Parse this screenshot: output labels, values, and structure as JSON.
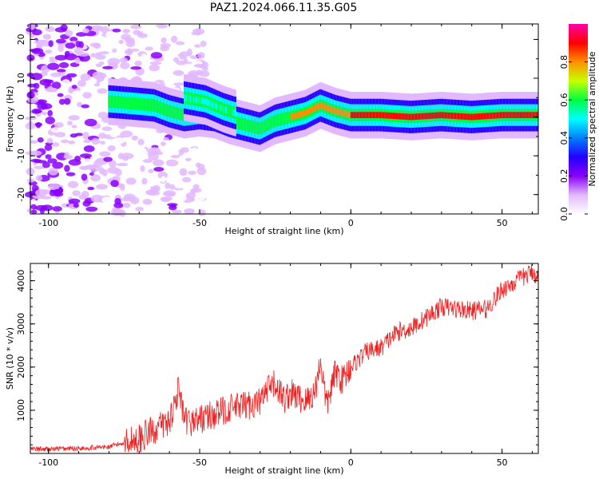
{
  "title": "PAZ1.2024.066.11.35.G05",
  "chart_data": [
    {
      "type": "heatmap",
      "xlabel": "Height of straight line (km)",
      "ylabel": "Frequency (Hz)",
      "xlim": [
        -106,
        62
      ],
      "ylim": [
        -25,
        24
      ],
      "xticks": [
        -100,
        -50,
        0,
        50
      ],
      "yticks": [
        -20,
        -10,
        0,
        10,
        20
      ],
      "colorbar": {
        "label": "Normalized spectral amplitude",
        "range": [
          0,
          1
        ],
        "ticks": [
          "0.0",
          "0.2",
          "0.4",
          "0.6",
          "0.8"
        ],
        "colors": [
          "#ffffff",
          "#e2b8ff",
          "#8a00ff",
          "#2200ff",
          "#0080ff",
          "#00ffff",
          "#00ff40",
          "#c8ff00",
          "#ff9000",
          "#ff0000",
          "#ff00aa"
        ]
      },
      "ridge": [
        {
          "x": -80,
          "y": 4
        },
        {
          "x": -72,
          "y": 3.5
        },
        {
          "x": -65,
          "y": 3
        },
        {
          "x": -60,
          "y": 1.5
        },
        {
          "x": -55,
          "y": 0.5
        },
        {
          "x": -50,
          "y": 1
        },
        {
          "x": -45,
          "y": 0.5
        },
        {
          "x": -40,
          "y": -1
        },
        {
          "x": -35,
          "y": -2
        },
        {
          "x": -30,
          "y": -3
        },
        {
          "x": -25,
          "y": -1
        },
        {
          "x": -20,
          "y": 0
        },
        {
          "x": -15,
          "y": 1
        },
        {
          "x": -10,
          "y": 3
        },
        {
          "x": -5,
          "y": 1.5
        },
        {
          "x": 0,
          "y": 0.5
        },
        {
          "x": 10,
          "y": 0.5
        },
        {
          "x": 20,
          "y": 0
        },
        {
          "x": 30,
          "y": 0.5
        },
        {
          "x": 40,
          "y": 0
        },
        {
          "x": 50,
          "y": 0.5
        },
        {
          "x": 62,
          "y": 0.5
        }
      ],
      "secondary_branch": [
        {
          "x": -55,
          "y": 5
        },
        {
          "x": -48,
          "y": 4
        },
        {
          "x": -42,
          "y": 2
        },
        {
          "x": -38,
          "y": 1
        }
      ]
    },
    {
      "type": "line",
      "xlabel": "Height of straight line (km)",
      "ylabel": "SNR (10 * v/v)",
      "xlim": [
        -106,
        62
      ],
      "ylim": [
        0,
        4400
      ],
      "xticks": [
        -100,
        -50,
        0,
        50
      ],
      "yticks": [
        1000,
        2000,
        3000,
        4000
      ],
      "color": "#ee2222",
      "x": [
        -106,
        -100,
        -90,
        -80,
        -70,
        -65,
        -60,
        -57,
        -55,
        -50,
        -45,
        -40,
        -35,
        -30,
        -27,
        -25,
        -22,
        -20,
        -15,
        -12,
        -10,
        -8,
        -5,
        -3,
        0,
        5,
        10,
        15,
        20,
        25,
        30,
        35,
        40,
        45,
        50,
        55,
        60,
        62
      ],
      "y": [
        100,
        100,
        120,
        150,
        350,
        550,
        750,
        1500,
        700,
        800,
        900,
        1050,
        1100,
        1200,
        1500,
        1600,
        1250,
        1400,
        1200,
        1400,
        2150,
        1100,
        1900,
        1700,
        2000,
        2350,
        2450,
        2800,
        2900,
        3150,
        3400,
        3350,
        3300,
        3350,
        3800,
        4000,
        4200,
        4100
      ]
    }
  ]
}
